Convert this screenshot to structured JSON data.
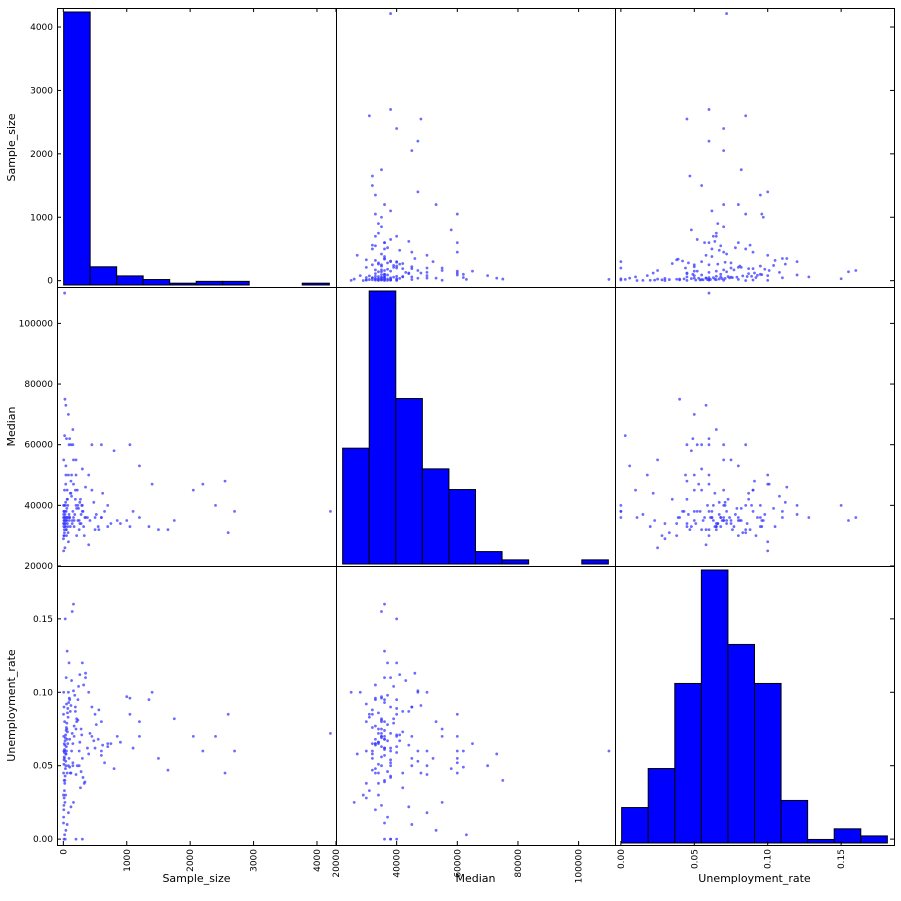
{
  "chart_data": {
    "type": "scatter",
    "title": "",
    "variables": [
      {
        "name": "Sample_size",
        "range": [
          -100,
          4300
        ],
        "ticks": [
          0,
          1000,
          2000,
          3000,
          4000
        ],
        "tick_labels": [
          "0",
          "1000",
          "2000",
          "3000",
          "4000"
        ]
      },
      {
        "name": "Median",
        "range": [
          20000,
          112000
        ],
        "ticks": [
          20000,
          40000,
          60000,
          80000,
          100000
        ],
        "tick_labels": [
          "20000",
          "40000",
          "60000",
          "80000",
          "100000"
        ]
      },
      {
        "name": "Unemployment_rate",
        "range": [
          -0.004,
          0.186
        ],
        "ticks": [
          0.0,
          0.05,
          0.1,
          0.15
        ],
        "tick_labels": [
          "0.00",
          "0.05",
          "0.10",
          "0.15"
        ]
      }
    ],
    "x_axis_labels": [
      "Sample_size",
      "Median",
      "Unemployment_rate"
    ],
    "y_axis_labels": [
      "Sample_size",
      "Median",
      "Unemployment_rate"
    ],
    "diagonal": "histogram",
    "histograms": [
      {
        "variable": "Sample_size",
        "bin_edges": [
          2,
          422,
          842,
          1262,
          1682,
          2102,
          2522,
          2942,
          3362,
          3782,
          4212
        ],
        "counts": [
          150,
          10,
          5,
          3,
          1,
          2,
          2,
          0,
          0,
          1
        ]
      },
      {
        "variable": "Median",
        "bin_edges": [
          22000,
          30800,
          39600,
          48400,
          57200,
          66000,
          74800,
          83600,
          92400,
          101200,
          110000
        ],
        "counts": [
          28,
          66,
          40,
          23,
          18,
          3,
          1,
          0,
          0,
          1
        ]
      },
      {
        "variable": "Unemployment_rate",
        "bin_edges": [
          0.0,
          0.0178,
          0.0356,
          0.0534,
          0.0712,
          0.089,
          0.1068,
          0.1246,
          0.1424,
          0.1602,
          0.178
        ],
        "counts": [
          10,
          21,
          45,
          77,
          56,
          45,
          12,
          1,
          4,
          2
        ]
      }
    ],
    "points": [
      [
        10,
        38000,
        0.0
      ],
      [
        30,
        36000,
        0.0
      ],
      [
        200,
        40000,
        0.0
      ],
      [
        300,
        38000,
        0.0
      ],
      [
        25,
        75000,
        0.04
      ],
      [
        40,
        73000,
        0.058
      ],
      [
        80,
        70000,
        0.05
      ],
      [
        150,
        65000,
        0.065
      ],
      [
        50,
        62000,
        0.06
      ],
      [
        120,
        60000,
        0.045
      ],
      [
        450,
        60000,
        0.07
      ],
      [
        1050,
        60000,
        0.085
      ],
      [
        200,
        55000,
        0.075
      ],
      [
        600,
        60000,
        0.06
      ],
      [
        20,
        110000,
        0.06
      ],
      [
        4212,
        38000,
        0.072
      ],
      [
        2600,
        31000,
        0.085
      ],
      [
        2700,
        38000,
        0.06
      ],
      [
        2400,
        40000,
        0.07
      ],
      [
        2550,
        48000,
        0.045
      ],
      [
        2200,
        47000,
        0.06
      ],
      [
        2050,
        45000,
        0.07
      ],
      [
        1750,
        35000,
        0.082
      ],
      [
        1650,
        32000,
        0.047
      ],
      [
        1400,
        47000,
        0.1
      ],
      [
        1350,
        33000,
        0.095
      ],
      [
        1200,
        53000,
        0.08
      ],
      [
        1050,
        33000,
        0.096
      ],
      [
        1000,
        35000,
        0.097
      ],
      [
        1200,
        36000,
        0.07
      ],
      [
        850,
        35000,
        0.07
      ],
      [
        750,
        34000,
        0.065
      ],
      [
        700,
        33000,
        0.065
      ],
      [
        600,
        36000,
        0.08
      ],
      [
        550,
        33000,
        0.068
      ],
      [
        500,
        32000,
        0.085
      ],
      [
        450,
        45000,
        0.09
      ],
      [
        400,
        50000,
        0.1
      ],
      [
        350,
        36000,
        0.11
      ],
      [
        300,
        40000,
        0.12
      ],
      [
        280,
        34000,
        0.075
      ],
      [
        250,
        32000,
        0.06
      ],
      [
        230,
        40000,
        0.095
      ],
      [
        210,
        30000,
        0.08
      ],
      [
        190,
        45000,
        0.09
      ],
      [
        170,
        35000,
        0.07
      ],
      [
        150,
        38000,
        0.05
      ],
      [
        130,
        50000,
        0.06
      ],
      [
        110,
        33000,
        0.045
      ],
      [
        100,
        36000,
        0.095
      ],
      [
        90,
        60000,
        0.055
      ],
      [
        80,
        28000,
        0.1
      ],
      [
        70,
        33000,
        0.065
      ],
      [
        60,
        42000,
        0.045
      ],
      [
        55,
        35000,
        0.075
      ],
      [
        50,
        30000,
        0.092
      ],
      [
        45,
        38000,
        0.11
      ],
      [
        40,
        50000,
        0.05
      ],
      [
        35,
        34000,
        0.03
      ],
      [
        30,
        40000,
        0.15
      ],
      [
        25,
        26000,
        0.025
      ],
      [
        20,
        35000,
        0.08
      ],
      [
        18,
        45000,
        0.055
      ],
      [
        15,
        32000,
        0.065
      ],
      [
        12,
        36000,
        0.04
      ],
      [
        10,
        38000,
        0.09
      ],
      [
        8,
        30000,
        0.06
      ],
      [
        6,
        55000,
        0.07
      ],
      [
        5,
        25000,
        0.1
      ],
      [
        4,
        34000,
        0.045
      ],
      [
        3,
        40000,
        0.085
      ],
      [
        2,
        29000,
        0.03
      ],
      [
        160,
        36000,
        0.16
      ],
      [
        140,
        35000,
        0.155
      ],
      [
        60,
        36000,
        0.128
      ],
      [
        90,
        37000,
        0.12
      ],
      [
        350,
        46000,
        0.113
      ],
      [
        320,
        33000,
        0.105
      ],
      [
        240,
        39000,
        0.104
      ],
      [
        260,
        41000,
        0.112
      ],
      [
        180,
        37000,
        0.098
      ],
      [
        120,
        48000,
        0.091
      ],
      [
        110,
        44000,
        0.087
      ],
      [
        75,
        31000,
        0.083
      ],
      [
        65,
        42000,
        0.073
      ],
      [
        58,
        36000,
        0.068
      ],
      [
        48,
        35000,
        0.063
      ],
      [
        42,
        32000,
        0.058
      ],
      [
        38,
        47000,
        0.053
      ],
      [
        33,
        33000,
        0.048
      ],
      [
        28,
        38000,
        0.043
      ],
      [
        22,
        34000,
        0.038
      ],
      [
        17,
        31000,
        0.033
      ],
      [
        13,
        30000,
        0.028
      ],
      [
        9,
        35000,
        0.023
      ],
      [
        7,
        33000,
        0.02
      ],
      [
        5,
        37000,
        0.015
      ],
      [
        3,
        36000,
        0.011
      ],
      [
        300,
        52000,
        0.055
      ],
      [
        400,
        27000,
        0.058
      ],
      [
        500,
        36000,
        0.062
      ],
      [
        650,
        38000,
        0.052
      ],
      [
        800,
        58000,
        0.048
      ],
      [
        900,
        34000,
        0.066
      ],
      [
        150,
        60000,
        0.052
      ],
      [
        220,
        45000,
        0.05
      ],
      [
        270,
        42000,
        0.035
      ],
      [
        330,
        30000,
        0.038
      ],
      [
        380,
        36000,
        0.062
      ],
      [
        420,
        35000,
        0.072
      ],
      [
        480,
        41000,
        0.067
      ],
      [
        520,
        37000,
        0.078
      ],
      [
        560,
        32000,
        0.088
      ],
      [
        620,
        44000,
        0.064
      ],
      [
        100,
        62000,
        0.049
      ],
      [
        200,
        50000,
        0.044
      ],
      [
        95,
        35000,
        0.096
      ],
      [
        85,
        36000,
        0.093
      ],
      [
        70,
        40000,
        0.089
      ],
      [
        65,
        34000,
        0.086
      ],
      [
        55,
        39000,
        0.079
      ],
      [
        48,
        32000,
        0.076
      ],
      [
        44,
        36000,
        0.074
      ],
      [
        36,
        41000,
        0.071
      ],
      [
        32,
        35000,
        0.069
      ],
      [
        27,
        37000,
        0.067
      ],
      [
        23,
        33000,
        0.064
      ],
      [
        19,
        36000,
        0.061
      ],
      [
        16,
        40000,
        0.059
      ],
      [
        14,
        35000,
        0.056
      ],
      [
        11,
        38000,
        0.054
      ],
      [
        9,
        34000,
        0.051
      ],
      [
        250,
        35000,
        0.05
      ],
      [
        280,
        37000,
        0.046
      ],
      [
        310,
        38000,
        0.042
      ],
      [
        340,
        36000,
        0.039
      ],
      [
        130,
        43000,
        0.108
      ],
      [
        160,
        47000,
        0.101
      ],
      [
        190,
        42000,
        0.087
      ],
      [
        210,
        39000,
        0.082
      ],
      [
        600,
        36000,
        0.057
      ],
      [
        700,
        40000,
        0.063
      ],
      [
        160,
        55000,
        0.025
      ],
      [
        120,
        44000,
        0.022
      ],
      [
        80,
        50000,
        0.018
      ],
      [
        60,
        45000,
        0.01
      ],
      [
        40,
        53000,
        0.006
      ],
      [
        20,
        63000,
        0.003
      ],
      [
        1500,
        32000,
        0.055
      ],
      [
        1100,
        38000,
        0.062
      ],
      [
        100,
        36000,
        0.068
      ],
      [
        140,
        34000,
        0.072
      ],
      [
        170,
        33000,
        0.077
      ],
      [
        230,
        35000,
        0.081
      ],
      [
        260,
        34000,
        0.066
      ],
      [
        290,
        40000,
        0.071
      ]
    ]
  }
}
